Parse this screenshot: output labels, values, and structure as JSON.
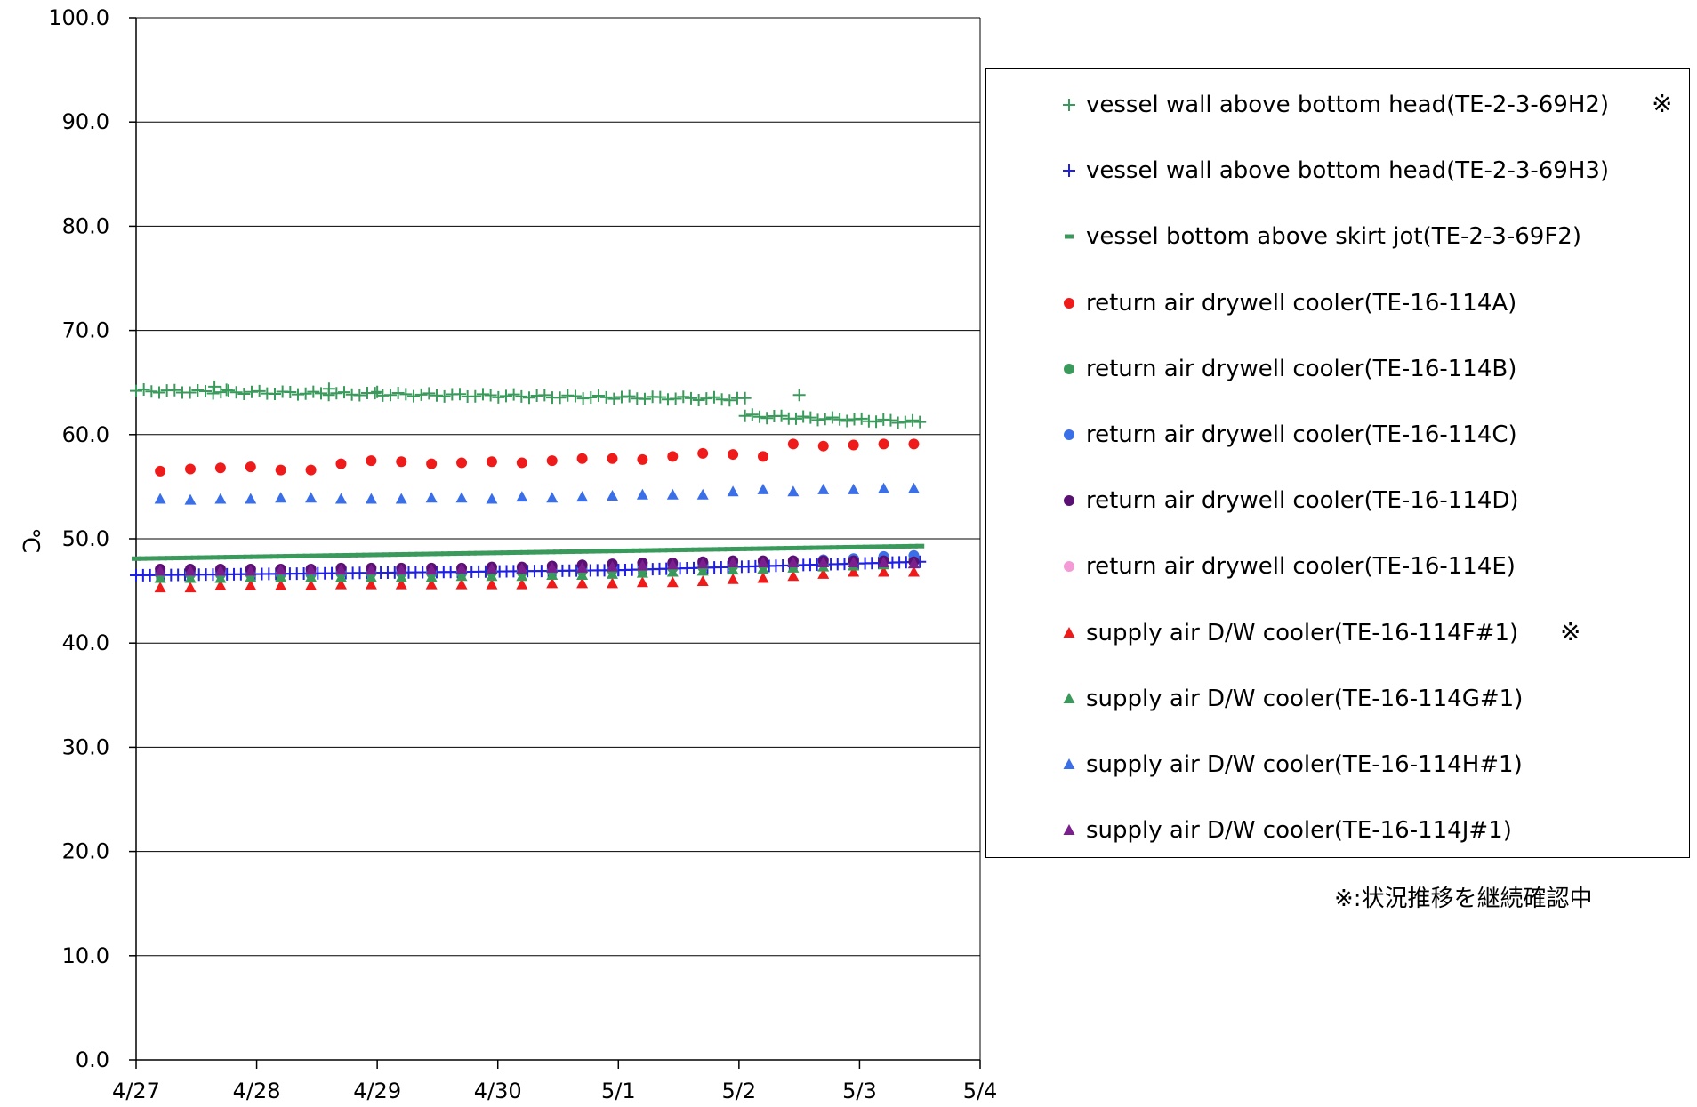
{
  "chart_data": {
    "type": "scatter",
    "title": "",
    "xlabel": "",
    "ylabel": "℃",
    "ylim": [
      0,
      100
    ],
    "y_ticks": [
      "0.0",
      "10.0",
      "20.0",
      "30.0",
      "40.0",
      "50.0",
      "60.0",
      "70.0",
      "80.0",
      "90.0",
      "100.0"
    ],
    "x_ticks": [
      "4/27",
      "4/28",
      "4/29",
      "4/30",
      "5/1",
      "5/2",
      "5/3",
      "5/4"
    ],
    "xlim": [
      0,
      7
    ],
    "grid": "horizontal",
    "legend_position": "right",
    "series": [
      {
        "name": "vessel wall above bottom head(TE-2-3-69H2)",
        "note": "※",
        "marker": "plus",
        "color": "#3a9a5b",
        "segments": [
          {
            "x_start": 0.0,
            "x_end": 5.05,
            "y_start": 64.2,
            "y_end": 63.4,
            "count": 80
          },
          {
            "x_start": 5.05,
            "x_end": 6.5,
            "y_start": 61.8,
            "y_end": 61.2,
            "count": 25
          }
        ],
        "points": [
          [
            5.5,
            63.8
          ],
          [
            0.65,
            64.6
          ],
          [
            0.75,
            64.3
          ],
          [
            1.6,
            64.4
          ],
          [
            2.0,
            64.1
          ]
        ]
      },
      {
        "name": "vessel wall above bottom head(TE-2-3-69H3)",
        "marker": "plus",
        "color": "#1f1fe6",
        "segments": [
          {
            "x_start": 0.0,
            "x_end": 4.0,
            "y_start": 46.5,
            "y_end": 47.0,
            "count": 70
          },
          {
            "x_start": 4.0,
            "x_end": 6.5,
            "y_start": 47.0,
            "y_end": 47.8,
            "count": 45
          }
        ]
      },
      {
        "name": "vessel bottom above skirt jot(TE-2-3-69F2)",
        "marker": "dash",
        "color": "#3a9a5b",
        "segments": [
          {
            "x_start": 0.0,
            "x_end": 6.5,
            "y_start": 48.1,
            "y_end": 49.3,
            "count": 120
          }
        ]
      },
      {
        "name": "return air drywell cooler(TE-16-114A)",
        "marker": "circle",
        "color": "#ef1a1a",
        "x": [
          0.2,
          0.45,
          0.7,
          0.95,
          1.2,
          1.45,
          1.7,
          1.95,
          2.2,
          2.45,
          2.7,
          2.95,
          3.2,
          3.45,
          3.7,
          3.95,
          4.2,
          4.45,
          4.7,
          4.95,
          5.2,
          5.45,
          5.7,
          5.95,
          6.2,
          6.45
        ],
        "y": [
          56.5,
          56.7,
          56.8,
          56.9,
          56.6,
          56.6,
          57.2,
          57.5,
          57.4,
          57.2,
          57.3,
          57.4,
          57.3,
          57.5,
          57.7,
          57.7,
          57.6,
          57.9,
          58.2,
          58.1,
          57.9,
          59.1,
          58.9,
          59.0,
          59.1,
          59.1
        ]
      },
      {
        "name": "return air drywell cooler(TE-16-114B)",
        "marker": "circle",
        "color": "#3a9a5b",
        "x": [
          0.2,
          0.45,
          0.7,
          0.95,
          1.2,
          1.45,
          1.7,
          1.95,
          2.2,
          2.45,
          2.7,
          2.95,
          3.2,
          3.45,
          3.7,
          3.95,
          4.2,
          4.45,
          4.7,
          4.95,
          5.2,
          5.45,
          5.7,
          5.95,
          6.2,
          6.45
        ],
        "y": [
          46.6,
          46.6,
          46.6,
          46.6,
          46.6,
          46.6,
          46.7,
          46.7,
          46.7,
          46.7,
          46.7,
          46.8,
          46.8,
          46.9,
          46.9,
          47.0,
          47.1,
          47.2,
          47.3,
          47.4,
          47.5,
          47.6,
          47.7,
          47.8,
          47.9,
          48.0
        ]
      },
      {
        "name": "return air drywell cooler(TE-16-114C)",
        "marker": "circle",
        "color": "#3b6fe8",
        "x": [
          0.2,
          0.45,
          0.7,
          0.95,
          1.2,
          1.45,
          1.7,
          1.95,
          2.2,
          2.45,
          2.7,
          2.95,
          3.2,
          3.45,
          3.7,
          3.95,
          4.2,
          4.45,
          4.7,
          4.95,
          5.2,
          5.45,
          5.7,
          5.95,
          6.2,
          6.45
        ],
        "y": [
          46.8,
          46.8,
          46.8,
          46.8,
          46.8,
          46.8,
          46.9,
          46.9,
          46.9,
          46.9,
          46.9,
          47.0,
          47.0,
          47.1,
          47.2,
          47.3,
          47.4,
          47.5,
          47.6,
          47.7,
          47.8,
          47.9,
          48.0,
          48.1,
          48.3,
          48.4
        ]
      },
      {
        "name": "return air drywell cooler(TE-16-114D)",
        "marker": "circle",
        "color": "#5a0f73",
        "x": [
          0.2,
          0.45,
          0.7,
          0.95,
          1.2,
          1.45,
          1.7,
          1.95,
          2.2,
          2.45,
          2.7,
          2.95,
          3.2,
          3.45,
          3.7,
          3.95,
          4.2,
          4.45,
          4.7,
          4.95,
          5.2,
          5.45,
          5.7,
          5.95,
          6.2,
          6.45
        ],
        "y": [
          47.1,
          47.1,
          47.1,
          47.1,
          47.1,
          47.1,
          47.2,
          47.2,
          47.2,
          47.2,
          47.2,
          47.3,
          47.3,
          47.4,
          47.5,
          47.6,
          47.7,
          47.7,
          47.8,
          47.9,
          47.9,
          47.9,
          47.9,
          47.9,
          47.9,
          47.8
        ]
      },
      {
        "name": "return air drywell cooler(TE-16-114E)",
        "marker": "circle",
        "color": "#f49ad6",
        "x": [],
        "y": []
      },
      {
        "name": "supply air D/W cooler(TE-16-114F#1)",
        "note": "※",
        "marker": "triangle",
        "color": "#ef1a1a",
        "x": [
          0.2,
          0.45,
          0.7,
          0.95,
          1.2,
          1.45,
          1.7,
          1.95,
          2.2,
          2.45,
          2.7,
          2.95,
          3.2,
          3.45,
          3.7,
          3.95,
          4.2,
          4.45,
          4.7,
          4.95,
          5.2,
          5.45,
          5.7,
          5.95,
          6.2,
          6.45
        ],
        "y": [
          45.3,
          45.3,
          45.5,
          45.5,
          45.5,
          45.5,
          45.6,
          45.6,
          45.6,
          45.6,
          45.6,
          45.6,
          45.6,
          45.7,
          45.7,
          45.7,
          45.8,
          45.8,
          45.9,
          46.1,
          46.2,
          46.4,
          46.6,
          46.8,
          46.8,
          46.8
        ]
      },
      {
        "name": "supply air D/W cooler(TE-16-114G#1)",
        "marker": "triangle",
        "color": "#3a9a5b",
        "x": [
          0.2,
          0.45,
          0.7,
          0.95,
          1.2,
          1.45,
          1.7,
          1.95,
          2.2,
          2.45,
          2.7,
          2.95,
          3.2,
          3.45,
          3.7,
          3.95,
          4.2,
          4.45,
          4.7,
          4.95,
          5.2,
          5.45,
          5.7,
          5.95,
          6.2,
          6.45
        ],
        "y": [
          46.2,
          46.2,
          46.2,
          46.3,
          46.3,
          46.3,
          46.3,
          46.3,
          46.3,
          46.3,
          46.4,
          46.4,
          46.4,
          46.5,
          46.5,
          46.6,
          46.7,
          46.8,
          46.9,
          47.0,
          47.1,
          47.2,
          47.3,
          47.4,
          47.5,
          47.6
        ]
      },
      {
        "name": "supply air D/W cooler(TE-16-114H#1)",
        "marker": "triangle",
        "color": "#3b6fe8",
        "x": [
          0.2,
          0.45,
          0.7,
          0.95,
          1.2,
          1.45,
          1.7,
          1.95,
          2.2,
          2.45,
          2.7,
          2.95,
          3.2,
          3.45,
          3.7,
          3.95,
          4.2,
          4.45,
          4.7,
          4.95,
          5.2,
          5.45,
          5.7,
          5.95,
          6.2,
          6.45
        ],
        "y": [
          53.8,
          53.7,
          53.8,
          53.8,
          53.9,
          53.9,
          53.8,
          53.8,
          53.8,
          53.9,
          53.9,
          53.8,
          54.0,
          53.9,
          54.0,
          54.1,
          54.2,
          54.2,
          54.2,
          54.5,
          54.7,
          54.5,
          54.7,
          54.7,
          54.8,
          54.8
        ]
      },
      {
        "name": "supply air D/W cooler(TE-16-114J#1)",
        "marker": "triangle",
        "color": "#7b1f8f",
        "x": [
          0.2,
          0.45,
          0.7,
          0.95,
          1.2,
          1.45,
          1.7,
          1.95,
          2.2,
          2.45,
          2.7,
          2.95,
          3.2,
          3.45,
          3.7,
          3.95,
          4.2,
          4.45,
          4.7,
          4.95,
          5.2,
          5.45,
          5.7,
          5.95,
          6.2,
          6.45
        ],
        "y": [
          46.9,
          46.9,
          46.9,
          46.9,
          47.0,
          47.0,
          47.0,
          47.0,
          47.0,
          47.0,
          47.1,
          47.1,
          47.1,
          47.2,
          47.2,
          47.3,
          47.4,
          47.5,
          47.6,
          47.7,
          47.7,
          47.7,
          47.7,
          47.7,
          47.7,
          47.6
        ]
      }
    ]
  },
  "legend": {
    "note_mark": "※"
  },
  "footnote": "※:状況推移を継続確認中"
}
